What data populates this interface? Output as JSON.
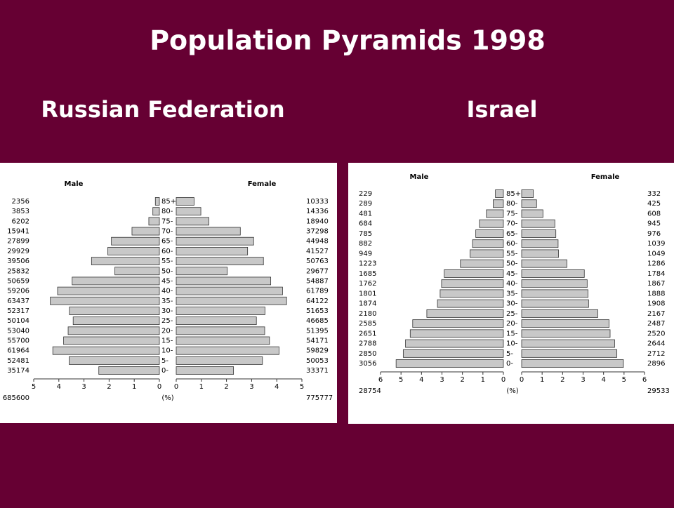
{
  "title": "Population Pyramids 1998",
  "chart_data": [
    {
      "type": "pyramid",
      "title": "Russian Federation",
      "xlabel": "(%)",
      "xlim": [
        0,
        5
      ],
      "xticks": [
        0,
        1,
        2,
        3,
        4,
        5
      ],
      "categories": [
        "85+",
        "80-",
        "75-",
        "70-",
        "65-",
        "60-",
        "55-",
        "50-",
        "45-",
        "40-",
        "35-",
        "30-",
        "25-",
        "20-",
        "15-",
        "10-",
        "5-",
        "0-"
      ],
      "series": [
        {
          "name": "Male",
          "color": "#c8c8c8",
          "total": 685600,
          "counts": [
            2356,
            3853,
            6202,
            15941,
            27899,
            29929,
            39506,
            25832,
            50659,
            59206,
            63437,
            52317,
            50104,
            53040,
            55700,
            61964,
            52481,
            35174
          ],
          "values": [
            0.16,
            0.26,
            0.42,
            1.09,
            1.91,
            2.05,
            2.7,
            1.77,
            3.47,
            4.05,
            4.34,
            3.58,
            3.43,
            3.63,
            3.81,
            4.24,
            3.59,
            2.41
          ]
        },
        {
          "name": "Female",
          "color": "#c8c8c8",
          "total": 775777,
          "counts": [
            10333,
            14336,
            18940,
            37298,
            44948,
            41527,
            50763,
            29677,
            54887,
            61789,
            64122,
            51653,
            46685,
            51395,
            54171,
            59829,
            50053,
            33371
          ],
          "values": [
            0.71,
            0.98,
            1.3,
            2.55,
            3.08,
            2.84,
            3.47,
            2.03,
            3.76,
            4.23,
            4.39,
            3.53,
            3.19,
            3.52,
            3.71,
            4.09,
            3.43,
            2.28
          ]
        }
      ]
    },
    {
      "type": "pyramid",
      "title": "Israel",
      "xlabel": "(%)",
      "xlim": [
        0,
        6
      ],
      "xticks": [
        0,
        1,
        2,
        3,
        4,
        5,
        6
      ],
      "categories": [
        "85+",
        "80-",
        "75-",
        "70-",
        "65-",
        "60-",
        "55-",
        "50-",
        "45-",
        "40-",
        "35-",
        "30-",
        "25-",
        "20-",
        "15-",
        "10-",
        "5-",
        "0-"
      ],
      "series": [
        {
          "name": "Male",
          "color": "#c8c8c8",
          "total": 28754,
          "counts": [
            229,
            289,
            481,
            684,
            785,
            882,
            949,
            1223,
            1685,
            1762,
            1801,
            1874,
            2180,
            2585,
            2651,
            2788,
            2850,
            3056
          ],
          "values": [
            0.39,
            0.5,
            0.83,
            1.17,
            1.35,
            1.51,
            1.63,
            2.1,
            2.89,
            3.02,
            3.09,
            3.22,
            3.74,
            4.43,
            4.55,
            4.78,
            4.89,
            5.24
          ]
        },
        {
          "name": "Female",
          "color": "#c8c8c8",
          "total": 29533,
          "counts": [
            332,
            425,
            608,
            945,
            976,
            1039,
            1049,
            1286,
            1784,
            1867,
            1888,
            1908,
            2167,
            2487,
            2520,
            2644,
            2712,
            2896
          ],
          "values": [
            0.57,
            0.73,
            1.04,
            1.62,
            1.67,
            1.78,
            1.8,
            2.21,
            3.06,
            3.2,
            3.24,
            3.27,
            3.72,
            4.27,
            4.32,
            4.54,
            4.65,
            4.97
          ]
        }
      ]
    }
  ]
}
